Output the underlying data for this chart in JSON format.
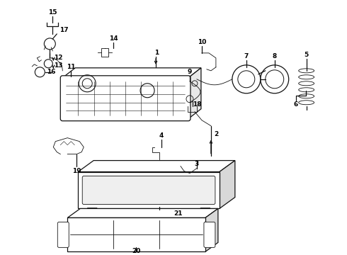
{
  "bg_color": "#ffffff",
  "line_color": "#111111",
  "text_color": "#000000",
  "figsize": [
    4.9,
    3.6
  ],
  "dpi": 100
}
